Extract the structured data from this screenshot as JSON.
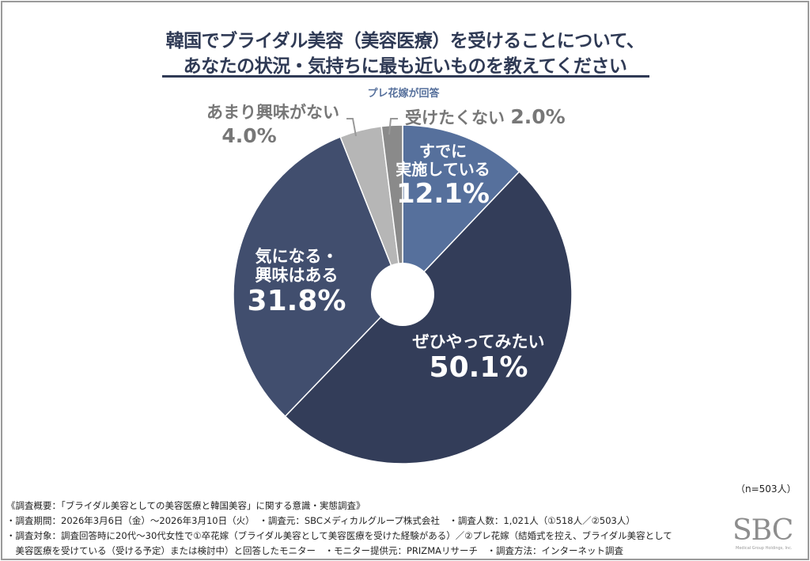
{
  "chart_data": {
    "type": "pie",
    "title": [
      "韓国でブライダル美容（美容医療）を受けることについて、",
      "あなたの状況・気持ちに最も近いものを教えてください"
    ],
    "subtitle": "プレ花嫁が回答",
    "slices": [
      {
        "label": "すでに実施している",
        "label_lines": [
          "すでに",
          "実施している"
        ],
        "value": 12.1,
        "value_label": "12.1%",
        "color": "#56709c"
      },
      {
        "label": "ぜひやってみたい",
        "label_lines": [
          "ぜひやってみたい"
        ],
        "value": 50.1,
        "value_label": "50.1%",
        "color": "#333d59"
      },
      {
        "label": "気になる・興味はある",
        "label_lines": [
          "気になる・",
          "興味はある"
        ],
        "value": 31.8,
        "value_label": "31.8%",
        "color": "#414e6e"
      },
      {
        "label": "あまり興味がない",
        "label_lines": [
          "あまり興味がない"
        ],
        "value": 4.0,
        "value_label": "4.0%",
        "color": "#b6b6b6"
      },
      {
        "label": "受けたくない",
        "label_lines": [
          "受けたくない"
        ],
        "value": 2.0,
        "value_label": "2.0%",
        "color": "#8a8a8a"
      }
    ],
    "donut_hole": true,
    "sample": "（n=503人）"
  },
  "footer": {
    "lines": [
      "《調査概要：「ブライダル美容としての美容医療と韓国美容」に関する意識・実態調査》",
      "・調査期間：2026年3月6日（金）～2026年3月10日（火）　・調査元：SBCメディカルグループ株式会社　・調査人数：1,021人（①518人／②503人）",
      "・調査対象：調査回答時に20代～30代女性で①卒花嫁（ブライダル美容として美容医療を受けた経験がある）／②プレ花嫁（結婚式を控え、ブライダル美容として",
      "　美容医療を受けている（受ける予定）または検討中）と回答したモニター　・モニター提供元：PRIZMAリサーチ　・調査方法：インターネット調査"
    ],
    "logo": "SBC",
    "logo_sub": "Medical Group Holdings, Inc."
  }
}
